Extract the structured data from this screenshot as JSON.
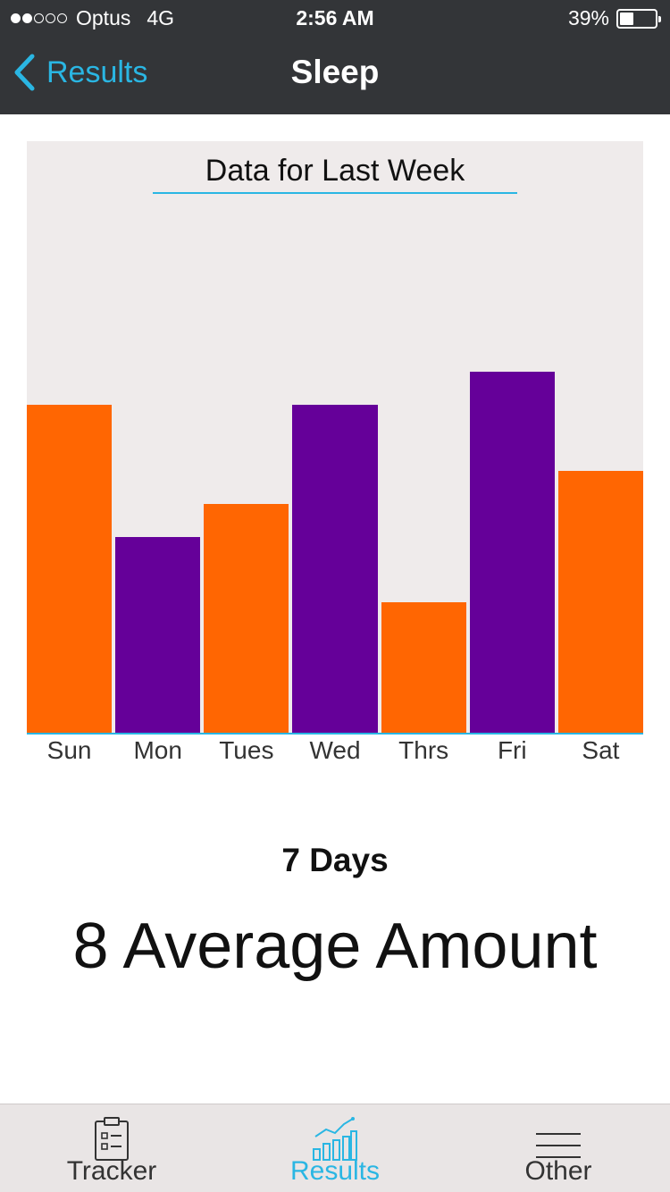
{
  "status_bar": {
    "carrier": "Optus",
    "network": "4G",
    "time": "2:56 AM",
    "battery": "39%",
    "battery_level": 0.39,
    "signal_strength": 2,
    "signal_max": 5
  },
  "nav": {
    "back_label": "Results",
    "title": "Sleep"
  },
  "colors": {
    "accent": "#2ab6e3",
    "orange": "#ff6602",
    "purple": "#650099",
    "chart_bg": "#efebeb",
    "header_bg": "#333538"
  },
  "chart_data": {
    "type": "bar",
    "title": "Data for Last Week",
    "categories": [
      "Sun",
      "Mon",
      "Tues",
      "Wed",
      "Thrs",
      "Fri",
      "Sat"
    ],
    "values": [
      10,
      6,
      7,
      10,
      4,
      11,
      8
    ],
    "bar_colors": [
      "orange",
      "purple",
      "orange",
      "purple",
      "orange",
      "purple",
      "orange"
    ],
    "ylim": [
      0,
      18
    ],
    "grid": false,
    "legend": "none"
  },
  "summary": {
    "days_label": "7 Days",
    "average_label": "8 Average Amount"
  },
  "tabs": [
    {
      "label": "Tracker",
      "icon": "clipboard-icon",
      "active": false
    },
    {
      "label": "Results",
      "icon": "bar-chart-icon",
      "active": true
    },
    {
      "label": "Other",
      "icon": "menu-lines-icon",
      "active": false
    }
  ]
}
